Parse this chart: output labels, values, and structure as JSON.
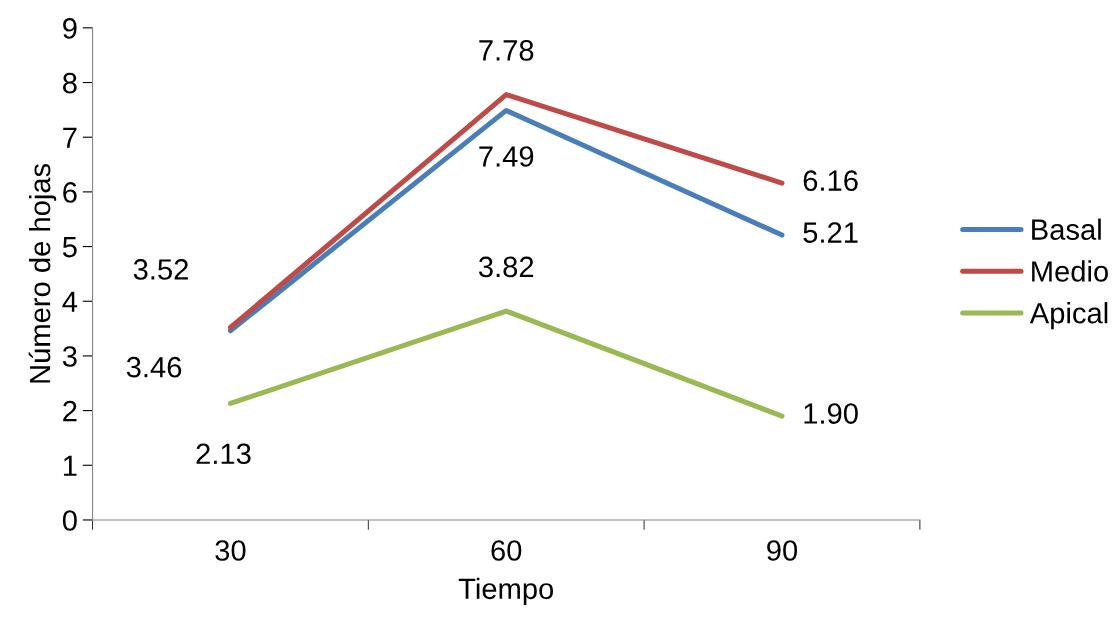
{
  "chart_data": {
    "type": "line",
    "xlabel": "Tiempo",
    "ylabel": "Número de hojas",
    "categories": [
      "30",
      "60",
      "90"
    ],
    "series": [
      {
        "name": "Basal",
        "color": "#4a7ebb",
        "values": [
          3.46,
          7.49,
          5.21
        ],
        "value_labels": [
          "3.46",
          "7.49",
          "5.21"
        ]
      },
      {
        "name": "Medio",
        "color": "#be4b48",
        "values": [
          3.52,
          7.78,
          6.16
        ],
        "value_labels": [
          "3.52",
          "7.78",
          "6.16"
        ]
      },
      {
        "name": "Apical",
        "color": "#98b954",
        "values": [
          2.13,
          3.82,
          1.9
        ],
        "value_labels": [
          "2.13",
          "3.82",
          "1.90"
        ]
      }
    ],
    "ylim": [
      0,
      9
    ],
    "yticks": [
      0,
      1,
      2,
      3,
      4,
      5,
      6,
      7,
      8,
      9
    ],
    "grid": false,
    "legend": "right",
    "marker": "none",
    "line_style": "solid"
  }
}
